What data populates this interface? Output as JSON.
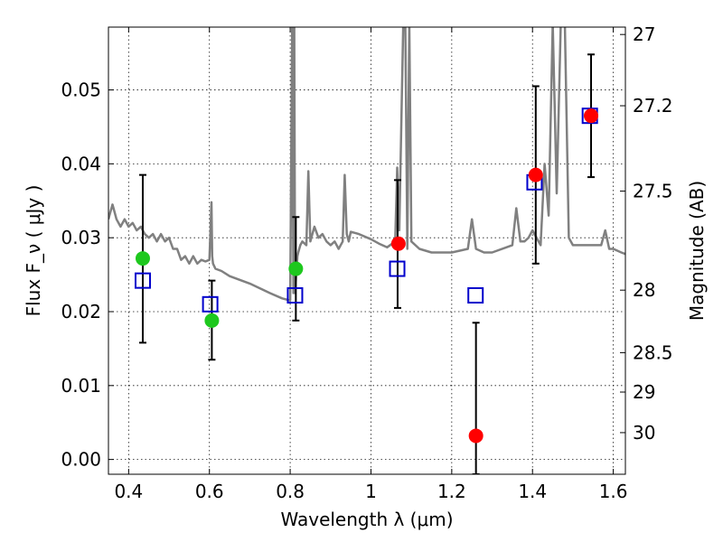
{
  "chart_data": {
    "type": "scatter",
    "xlabel": "Wavelength  λ (μm)",
    "ylabel": "Flux  F_ν  ( μJy )",
    "y2label": "Magnitude (AB)",
    "xlim": [
      0.35,
      1.63
    ],
    "ylim": [
      -0.002,
      0.0585
    ],
    "x_ticks": [
      0.4,
      0.6,
      0.8,
      1.0,
      1.2,
      1.4,
      1.6
    ],
    "x_tick_labels": [
      "0.4",
      "0.6",
      "0.8",
      "1",
      "1.2",
      "1.4",
      "1.6"
    ],
    "y_ticks": [
      0.0,
      0.01,
      0.02,
      0.03,
      0.04,
      0.05
    ],
    "y_tick_labels": [
      "0.00",
      "0.01",
      "0.02",
      "0.03",
      "0.04",
      "0.05"
    ],
    "y2_ticks": [
      {
        "flux": 0.0575,
        "label": "27"
      },
      {
        "flux": 0.04786,
        "label": "27.2"
      },
      {
        "flux": 0.03631,
        "label": "27.5"
      },
      {
        "flux": 0.02291,
        "label": "28"
      },
      {
        "flux": 0.01445,
        "label": "28.5"
      },
      {
        "flux": 0.00912,
        "label": "29"
      },
      {
        "flux": 0.00363,
        "label": "30"
      }
    ],
    "grid": true,
    "colors": {
      "model": "#808080",
      "model_photometry": "#0000cc",
      "detected": "#1ec81e",
      "observed": "#ff0000",
      "errorbar": "#000000"
    },
    "series": [
      {
        "type": "line",
        "x": [
          0.35,
          0.355,
          0.36,
          0.365,
          0.37,
          0.38,
          0.39,
          0.4,
          0.41,
          0.42,
          0.43,
          0.44,
          0.45,
          0.46,
          0.47,
          0.48,
          0.49,
          0.5,
          0.51,
          0.52,
          0.53,
          0.54,
          0.55,
          0.56,
          0.57,
          0.58,
          0.59,
          0.6,
          0.605,
          0.607,
          0.609,
          0.615,
          0.63,
          0.65,
          0.7,
          0.75,
          0.78,
          0.8,
          0.805,
          0.808,
          0.81,
          0.812,
          0.815,
          0.818,
          0.82,
          0.825,
          0.83,
          0.84,
          0.845,
          0.85,
          0.86,
          0.87,
          0.88,
          0.89,
          0.9,
          0.91,
          0.92,
          0.93,
          0.935,
          0.94,
          0.945,
          0.95,
          0.97,
          1.0,
          1.02,
          1.04,
          1.06,
          1.065,
          1.07,
          1.08,
          1.085,
          1.09,
          1.095,
          1.1,
          1.12,
          1.15,
          1.2,
          1.24,
          1.25,
          1.26,
          1.28,
          1.3,
          1.35,
          1.36,
          1.37,
          1.38,
          1.39,
          1.4,
          1.42,
          1.43,
          1.44,
          1.45,
          1.46,
          1.47,
          1.48,
          1.49,
          1.5,
          1.55,
          1.57,
          1.58,
          1.59,
          1.6,
          1.62,
          1.63
        ],
        "y": [
          0.0325,
          0.0335,
          0.0345,
          0.0335,
          0.0325,
          0.0315,
          0.0325,
          0.0315,
          0.032,
          0.031,
          0.0315,
          0.0305,
          0.03,
          0.0305,
          0.0295,
          0.0305,
          0.0295,
          0.03,
          0.0285,
          0.0285,
          0.027,
          0.0275,
          0.0265,
          0.0275,
          0.0265,
          0.027,
          0.0268,
          0.027,
          0.0348,
          0.0275,
          0.0265,
          0.0258,
          0.0255,
          0.0248,
          0.0238,
          0.0225,
          0.0218,
          0.0215,
          0.059,
          0.0225,
          0.059,
          0.0225,
          0.025,
          0.0275,
          0.028,
          0.029,
          0.0295,
          0.029,
          0.039,
          0.0295,
          0.0315,
          0.03,
          0.0305,
          0.0295,
          0.029,
          0.0295,
          0.0285,
          0.0295,
          0.0385,
          0.0305,
          0.0295,
          0.0308,
          0.0305,
          0.0298,
          0.0292,
          0.0287,
          0.0295,
          0.0395,
          0.031,
          0.059,
          0.059,
          0.0285,
          0.059,
          0.0295,
          0.0285,
          0.028,
          0.028,
          0.0285,
          0.0325,
          0.0285,
          0.028,
          0.028,
          0.029,
          0.034,
          0.0295,
          0.0295,
          0.03,
          0.031,
          0.029,
          0.04,
          0.033,
          0.059,
          0.036,
          0.059,
          0.059,
          0.03,
          0.029,
          0.029,
          0.029,
          0.031,
          0.0285,
          0.0285,
          0.028,
          0.0278
        ]
      },
      {
        "type": "errorbar",
        "points": [
          {
            "x": 0.435,
            "low": 0.0158,
            "high": 0.0385
          },
          {
            "x": 0.606,
            "low": 0.0135,
            "high": 0.0242
          },
          {
            "x": 0.814,
            "low": 0.0188,
            "high": 0.0328
          },
          {
            "x": 1.066,
            "low": 0.0205,
            "high": 0.0378
          },
          {
            "x": 1.26,
            "low": -0.002,
            "high": 0.0185
          },
          {
            "x": 1.408,
            "low": 0.0265,
            "high": 0.0505
          },
          {
            "x": 1.545,
            "low": 0.0382,
            "high": 0.0548
          }
        ]
      },
      {
        "type": "scatter",
        "marker": "square",
        "x": [
          0.435,
          0.602,
          0.812,
          1.065,
          1.259,
          1.405,
          1.542
        ],
        "y": [
          0.0242,
          0.021,
          0.0222,
          0.0258,
          0.0222,
          0.0375,
          0.0465
        ]
      },
      {
        "type": "scatter",
        "marker": "circle",
        "color_key": "detected",
        "x": [
          0.435,
          0.606,
          0.814
        ],
        "y": [
          0.0272,
          0.0188,
          0.0258
        ]
      },
      {
        "type": "scatter",
        "marker": "circle",
        "color_key": "observed",
        "x": [
          1.068,
          1.26,
          1.408,
          1.545
        ],
        "y": [
          0.0292,
          0.0032,
          0.0385,
          0.0465
        ]
      }
    ]
  }
}
